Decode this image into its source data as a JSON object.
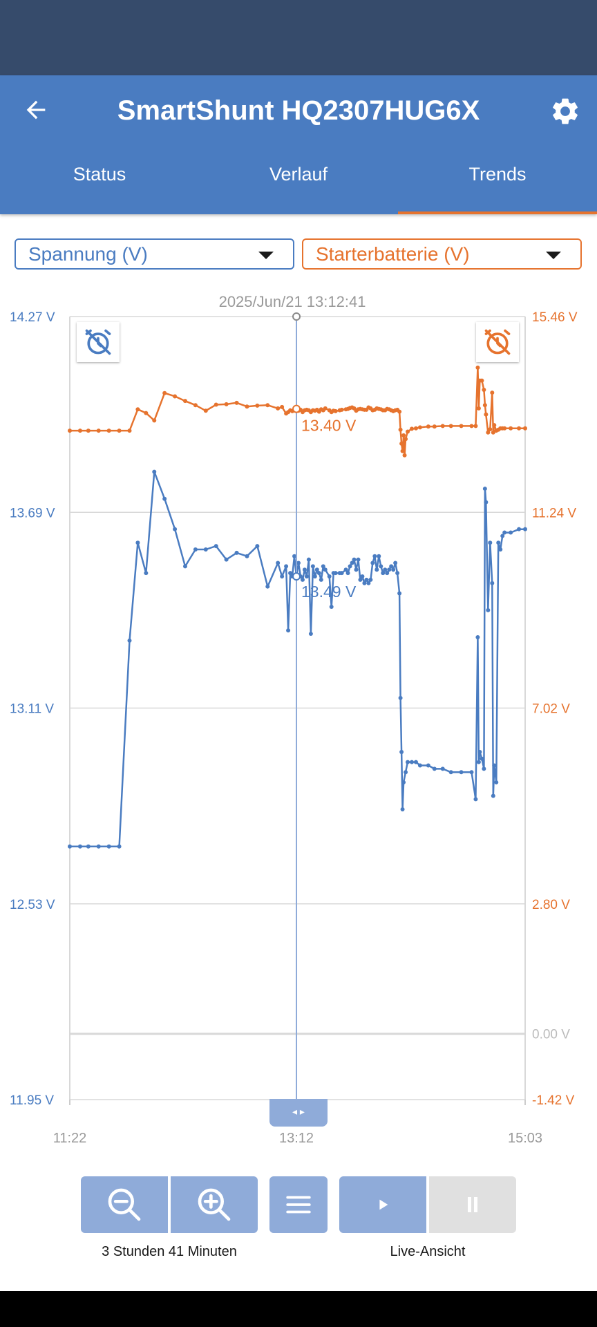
{
  "app": {
    "title": "SmartShunt HQ2307HUG6X"
  },
  "tabs": [
    {
      "label": "Status",
      "active": false
    },
    {
      "label": "Verlauf",
      "active": false
    },
    {
      "label": "Trends",
      "active": true
    }
  ],
  "selectors": {
    "left": {
      "value": "Spannung (V)",
      "color": "#4a7cc1"
    },
    "right": {
      "value": "Starterbatterie (V)",
      "color": "#e6732e"
    }
  },
  "chart_data": {
    "type": "line",
    "cursor": {
      "timestamp": "2025/Jun/21 13:12:41",
      "time": "13:12",
      "left_value_label": "13.49 V",
      "right_value_label": "13.40 V"
    },
    "x": {
      "tick_labels": [
        "11:22",
        "13:12",
        "15:03"
      ],
      "range": [
        "11:22",
        "15:03"
      ]
    },
    "y_left": {
      "unit": "V",
      "range": [
        11.95,
        14.27
      ],
      "tick_labels": [
        "14.27 V",
        "13.69 V",
        "13.11 V",
        "12.53 V",
        "11.95 V"
      ]
    },
    "y_right": {
      "unit": "V",
      "range": [
        -1.42,
        15.46
      ],
      "tick_labels": [
        "15.46 V",
        "11.24 V",
        "7.02 V",
        "2.80 V",
        "0.00 V",
        "-1.42 V"
      ]
    },
    "grid": true,
    "series": [
      {
        "axis": "left",
        "color": "#4a7cc1",
        "points": [
          [
            0,
            12.7
          ],
          [
            5,
            12.7
          ],
          [
            9,
            12.7
          ],
          [
            14,
            12.7
          ],
          [
            19,
            12.7
          ],
          [
            24,
            12.7
          ],
          [
            29,
            13.31
          ],
          [
            33,
            13.6
          ],
          [
            37,
            13.51
          ],
          [
            41,
            13.81
          ],
          [
            46,
            13.73
          ],
          [
            51,
            13.64
          ],
          [
            56,
            13.53
          ],
          [
            61,
            13.58
          ],
          [
            66,
            13.58
          ],
          [
            71,
            13.59
          ],
          [
            76,
            13.55
          ],
          [
            81,
            13.57
          ],
          [
            86,
            13.56
          ],
          [
            91,
            13.59
          ],
          [
            96,
            13.47
          ],
          [
            101,
            13.54
          ],
          [
            103,
            13.5
          ],
          [
            105,
            13.53
          ],
          [
            106,
            13.34
          ],
          [
            107,
            13.51
          ],
          [
            108,
            13.5
          ],
          [
            109,
            13.56
          ],
          [
            110,
            13.5
          ],
          [
            111,
            13.54
          ],
          [
            112,
            13.5
          ],
          [
            113,
            13.49
          ],
          [
            114,
            13.52
          ],
          [
            115,
            13.5
          ],
          [
            116,
            13.55
          ],
          [
            117,
            13.33
          ],
          [
            118,
            13.53
          ],
          [
            119,
            13.5
          ],
          [
            120,
            13.52
          ],
          [
            121,
            13.51
          ],
          [
            122,
            13.49
          ],
          [
            123,
            13.53
          ],
          [
            124,
            13.52
          ],
          [
            126,
            13.5
          ],
          [
            127,
            13.41
          ],
          [
            128,
            13.51
          ],
          [
            129,
            13.51
          ],
          [
            131,
            13.51
          ],
          [
            132,
            13.51
          ],
          [
            134,
            13.52
          ],
          [
            135,
            13.51
          ],
          [
            136,
            13.53
          ],
          [
            137,
            13.54
          ],
          [
            138,
            13.55
          ],
          [
            139,
            13.52
          ],
          [
            140,
            13.55
          ],
          [
            141,
            13.49
          ],
          [
            142,
            13.5
          ],
          [
            143,
            13.48
          ],
          [
            144,
            13.49
          ],
          [
            145,
            13.48
          ],
          [
            146,
            13.49
          ],
          [
            147,
            13.54
          ],
          [
            148,
            13.56
          ],
          [
            149,
            13.52
          ],
          [
            150,
            13.56
          ],
          [
            151,
            13.53
          ],
          [
            152,
            13.51
          ],
          [
            153,
            13.52
          ],
          [
            154,
            13.51
          ],
          [
            155,
            13.52
          ],
          [
            156,
            13.53
          ],
          [
            157,
            13.52
          ],
          [
            158,
            13.54
          ],
          [
            159,
            13.51
          ],
          [
            160,
            13.45
          ],
          [
            160.5,
            13.14
          ],
          [
            161,
            12.98
          ],
          [
            161.5,
            12.81
          ],
          [
            162,
            12.89
          ],
          [
            163,
            12.92
          ],
          [
            164,
            12.95
          ],
          [
            166,
            12.95
          ],
          [
            168,
            12.95
          ],
          [
            170,
            12.94
          ],
          [
            174,
            12.94
          ],
          [
            177,
            12.93
          ],
          [
            181,
            12.93
          ],
          [
            185,
            12.92
          ],
          [
            190,
            12.92
          ],
          [
            195,
            12.92
          ],
          [
            197,
            12.84
          ],
          [
            198,
            13.32
          ],
          [
            198.5,
            12.95
          ],
          [
            199,
            12.98
          ],
          [
            200,
            12.96
          ],
          [
            201,
            12.93
          ],
          [
            201.5,
            13.76
          ],
          [
            202,
            13.72
          ],
          [
            203,
            13.4
          ],
          [
            204,
            13.6
          ],
          [
            205,
            13.48
          ],
          [
            205.5,
            12.85
          ],
          [
            206,
            12.94
          ],
          [
            207,
            12.89
          ],
          [
            208,
            13.6
          ],
          [
            209,
            13.58
          ],
          [
            210,
            13.62
          ],
          [
            211,
            13.63
          ],
          [
            214,
            13.63
          ],
          [
            218,
            13.64
          ],
          [
            221,
            13.64
          ]
        ]
      },
      {
        "axis": "right",
        "color": "#e6732e",
        "points": [
          [
            0,
            13.0
          ],
          [
            5,
            13.0
          ],
          [
            9,
            13.0
          ],
          [
            14,
            13.0
          ],
          [
            19,
            13.0
          ],
          [
            24,
            13.0
          ],
          [
            29,
            13.0
          ],
          [
            33,
            13.46
          ],
          [
            37,
            13.38
          ],
          [
            41,
            13.22
          ],
          [
            46,
            13.81
          ],
          [
            51,
            13.74
          ],
          [
            56,
            13.64
          ],
          [
            61,
            13.55
          ],
          [
            66,
            13.43
          ],
          [
            71,
            13.56
          ],
          [
            76,
            13.57
          ],
          [
            81,
            13.6
          ],
          [
            86,
            13.52
          ],
          [
            91,
            13.54
          ],
          [
            96,
            13.55
          ],
          [
            101,
            13.48
          ],
          [
            103,
            13.51
          ],
          [
            105,
            13.37
          ],
          [
            106,
            13.4
          ],
          [
            107,
            13.44
          ],
          [
            108,
            13.42
          ],
          [
            109,
            13.45
          ],
          [
            110,
            13.47
          ],
          [
            111,
            13.43
          ],
          [
            112,
            13.45
          ],
          [
            113,
            13.4
          ],
          [
            114,
            13.44
          ],
          [
            115,
            13.45
          ],
          [
            116,
            13.44
          ],
          [
            117,
            13.4
          ],
          [
            118,
            13.44
          ],
          [
            119,
            13.43
          ],
          [
            120,
            13.45
          ],
          [
            121,
            13.41
          ],
          [
            122,
            13.46
          ],
          [
            123,
            13.44
          ],
          [
            124,
            13.48
          ],
          [
            126,
            13.44
          ],
          [
            127,
            13.4
          ],
          [
            128,
            13.43
          ],
          [
            129,
            13.42
          ],
          [
            131,
            13.44
          ],
          [
            132,
            13.45
          ],
          [
            134,
            13.46
          ],
          [
            135,
            13.47
          ],
          [
            136,
            13.49
          ],
          [
            137,
            13.5
          ],
          [
            138,
            13.48
          ],
          [
            139,
            13.43
          ],
          [
            140,
            13.46
          ],
          [
            141,
            13.47
          ],
          [
            142,
            13.46
          ],
          [
            143,
            13.45
          ],
          [
            144,
            13.45
          ],
          [
            145,
            13.5
          ],
          [
            146,
            13.48
          ],
          [
            147,
            13.44
          ],
          [
            148,
            13.45
          ],
          [
            149,
            13.48
          ],
          [
            150,
            13.47
          ],
          [
            151,
            13.46
          ],
          [
            152,
            13.44
          ],
          [
            153,
            13.44
          ],
          [
            154,
            13.47
          ],
          [
            155,
            13.46
          ],
          [
            156,
            13.44
          ],
          [
            157,
            13.42
          ],
          [
            158,
            13.44
          ],
          [
            159,
            13.45
          ],
          [
            160,
            13.41
          ],
          [
            160.5,
            13.02
          ],
          [
            161,
            12.72
          ],
          [
            161.5,
            12.56
          ],
          [
            162,
            12.9
          ],
          [
            162.5,
            12.47
          ],
          [
            163,
            12.82
          ],
          [
            164,
            12.98
          ],
          [
            166,
            13.04
          ],
          [
            168,
            13.05
          ],
          [
            170,
            13.07
          ],
          [
            174,
            13.09
          ],
          [
            177,
            13.09
          ],
          [
            181,
            13.1
          ],
          [
            185,
            13.1
          ],
          [
            190,
            13.1
          ],
          [
            195,
            13.1
          ],
          [
            197,
            13.1
          ],
          [
            198,
            14.36
          ],
          [
            198.5,
            13.48
          ],
          [
            199,
            14.08
          ],
          [
            200,
            14.08
          ],
          [
            201,
            13.88
          ],
          [
            201.5,
            13.55
          ],
          [
            202,
            13.35
          ],
          [
            203,
            12.96
          ],
          [
            204,
            13.03
          ],
          [
            205,
            13.82
          ],
          [
            205.5,
            12.96
          ],
          [
            206,
            13.12
          ],
          [
            207,
            13.0
          ],
          [
            208,
            13.02
          ],
          [
            209,
            13.05
          ],
          [
            210,
            13.05
          ],
          [
            211,
            13.05
          ],
          [
            214,
            13.05
          ],
          [
            218,
            13.05
          ],
          [
            221,
            13.05
          ]
        ]
      }
    ]
  },
  "controls": {
    "zoom_caption": "3 Stunden 41 Minuten",
    "live_caption": "Live-Ansicht"
  }
}
